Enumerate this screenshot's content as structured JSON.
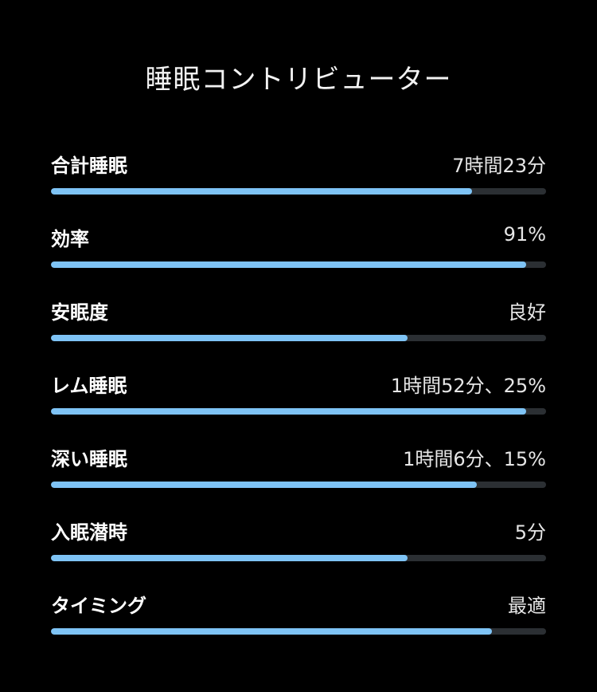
{
  "title": "睡眠コントリビューター",
  "accent_color": "#7ec3f5",
  "track_color": "#2b2f33",
  "contributors": [
    {
      "label": "合計睡眠",
      "value": "7時間23分",
      "level": 0.85
    },
    {
      "label": "効率",
      "value": "91%",
      "level": 0.96
    },
    {
      "label": "安眠度",
      "value": "良好",
      "level": 0.72
    },
    {
      "label": "レム睡眠",
      "value": "1時間52分、25%",
      "level": 0.96
    },
    {
      "label": "深い睡眠",
      "value": "1時間6分、15%",
      "level": 0.86
    },
    {
      "label": "入眠潜時",
      "value": "5分",
      "level": 0.72
    },
    {
      "label": "タイミング",
      "value": "最適",
      "level": 0.89
    }
  ]
}
